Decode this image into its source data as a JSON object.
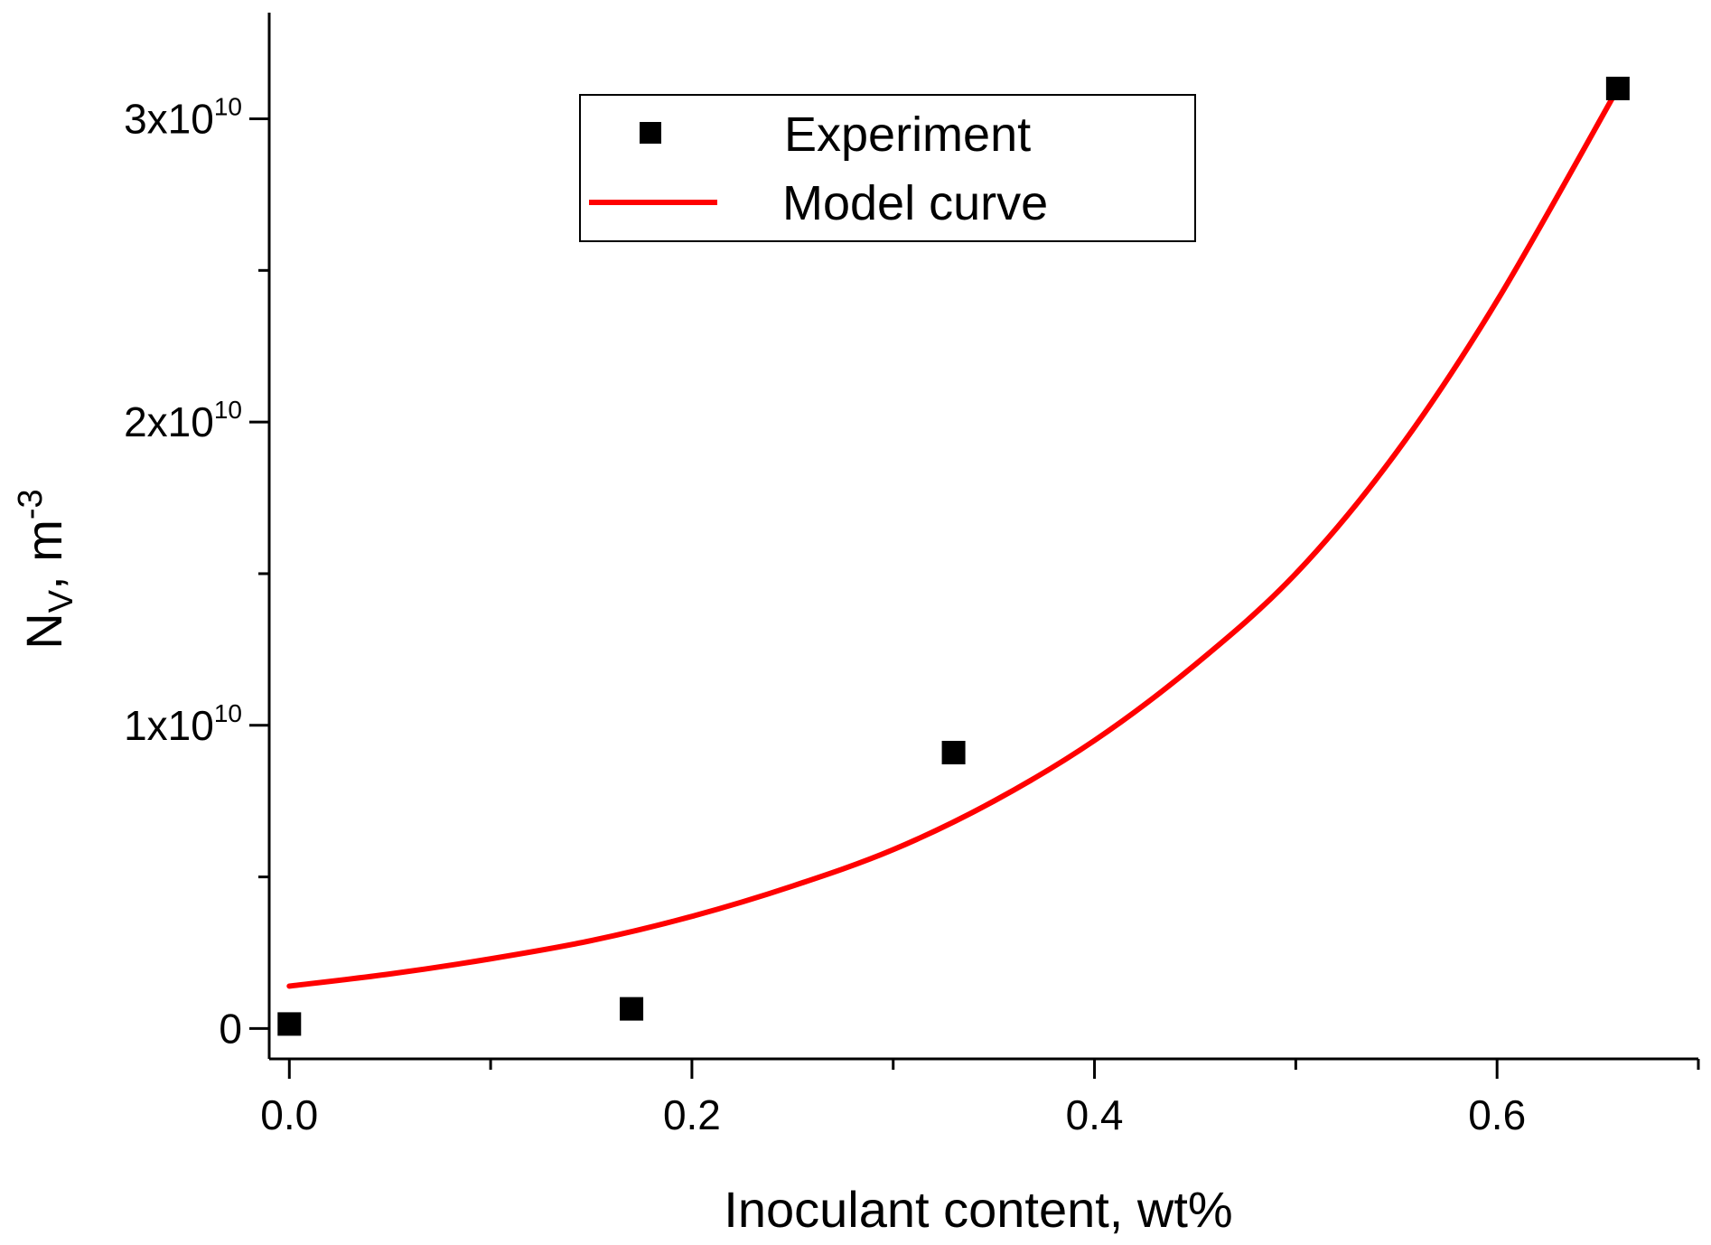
{
  "chart_data": {
    "type": "scatter",
    "title": "",
    "xlabel": "Inoculant content, wt%",
    "ylabel": {
      "base": "N",
      "sub": "V",
      "rest": ", m",
      "sup": "-3"
    },
    "xlim": [
      -0.01,
      0.7
    ],
    "ylim": [
      -1000000000.0,
      33500000000.0
    ],
    "x_ticks": [
      {
        "value": 0.0,
        "label": "0.0"
      },
      {
        "value": 0.2,
        "label": "0.2"
      },
      {
        "value": 0.4,
        "label": "0.4"
      },
      {
        "value": 0.6,
        "label": "0.6"
      }
    ],
    "x_minor_ticks": [
      0.1,
      0.3,
      0.5,
      0.7
    ],
    "y_ticks": [
      {
        "value": 0,
        "mantissa": "0",
        "exp": ""
      },
      {
        "value": 10000000000.0,
        "mantissa": "1x10",
        "exp": "10"
      },
      {
        "value": 20000000000.0,
        "mantissa": "2x10",
        "exp": "10"
      },
      {
        "value": 30000000000.0,
        "mantissa": "3x10",
        "exp": "10"
      }
    ],
    "y_minor_ticks": [
      5000000000.0,
      15000000000.0,
      25000000000.0
    ],
    "series": [
      {
        "name": "Experiment",
        "kind": "scatter",
        "color": "#000000",
        "marker": "square",
        "x": [
          0.0,
          0.17,
          0.33,
          0.66
        ],
        "y": [
          150000000.0,
          650000000.0,
          9100000000.0,
          31000000000.0
        ]
      },
      {
        "name": "Model curve",
        "kind": "line",
        "color": "#ff0000",
        "x": [
          0.0,
          0.05,
          0.1,
          0.15,
          0.2,
          0.25,
          0.3,
          0.35,
          0.4,
          0.45,
          0.5,
          0.55,
          0.6,
          0.66
        ],
        "y": [
          1400000000.0,
          1800000000.0,
          2300000000.0,
          2900000000.0,
          3700000000.0,
          4700000000.0,
          5900000000.0,
          7500000000.0,
          9500000000.0,
          12000000000.0,
          15000000000.0,
          19000000000.0,
          24000000000.0,
          31000000000.0
        ]
      }
    ],
    "legend": {
      "position": "top-center",
      "entries": [
        "Experiment",
        "Model curve"
      ]
    }
  }
}
